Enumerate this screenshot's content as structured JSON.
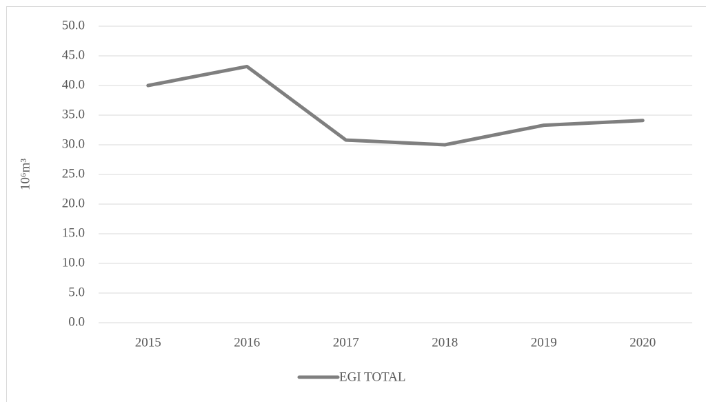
{
  "chart_data": {
    "type": "line",
    "y_label": "10⁶m³",
    "categories": [
      "2015",
      "2016",
      "2017",
      "2018",
      "2019",
      "2020"
    ],
    "series": [
      {
        "name": "EGI TOTAL",
        "color": "#7f7f7f",
        "values": [
          40.0,
          43.2,
          30.8,
          30.0,
          33.3,
          34.1
        ]
      }
    ],
    "ylim": [
      0,
      50
    ],
    "yticks": [
      {
        "value": 0,
        "label": "0.0"
      },
      {
        "value": 5,
        "label": "5.0"
      },
      {
        "value": 10,
        "label": "10.0"
      },
      {
        "value": 15,
        "label": "15.0"
      },
      {
        "value": 20,
        "label": "20.0"
      },
      {
        "value": 25,
        "label": "25.0"
      },
      {
        "value": 30,
        "label": "30.0"
      },
      {
        "value": 35,
        "label": "35.0"
      },
      {
        "value": 40,
        "label": "40.0"
      },
      {
        "value": 45,
        "label": "45.0"
      },
      {
        "value": 50,
        "label": "50.0"
      }
    ],
    "grid": true,
    "legend": "bottom"
  }
}
